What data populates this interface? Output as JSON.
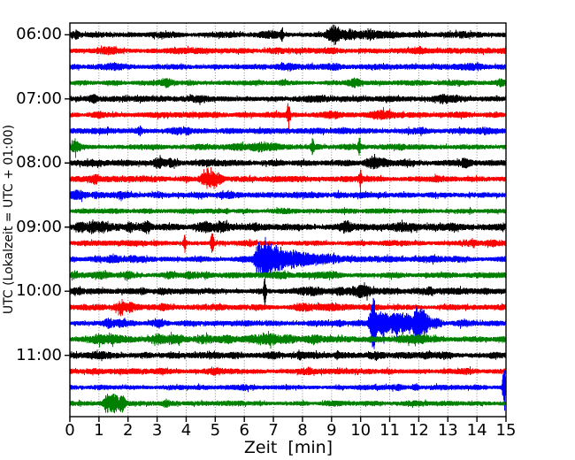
{
  "axes": {
    "xlabel": "Zeit  [min]",
    "ylabel": "UTC (Lokalzeit = UTC + 01:00)"
  },
  "chart_data": {
    "type": "line",
    "subtype": "seismogram-helicorder",
    "title": "",
    "xlabel": "Zeit  [min]",
    "ylabel": "UTC (Lokalzeit = UTC + 01:00)",
    "xlim": [
      0,
      15
    ],
    "x_tick_labels": [
      "0",
      "1",
      "2",
      "3",
      "4",
      "5",
      "6",
      "7",
      "8",
      "9",
      "10",
      "11",
      "12",
      "13",
      "14",
      "15"
    ],
    "y_tick_labels": [
      "06:00",
      "07:00",
      "08:00",
      "09:00",
      "10:00",
      "11:00"
    ],
    "rows_per_hour": 4,
    "minutes_per_row": 15,
    "grid": "vertical-dotted-per-minute",
    "grid_color": "#7a7a7a",
    "frame_color": "#000000",
    "trace_colors": {
      "black": "#000000",
      "red": "#ff0000",
      "blue": "#0000ff",
      "green": "#008000"
    },
    "event_format": "[center_minute, gaussian_width_minutes, extra_amplitude_px]",
    "rows": [
      {
        "utc": "06:00",
        "color": "#000000",
        "base": 3.2,
        "events": [
          [
            0.22,
            0.1,
            3.2
          ],
          [
            3.0,
            0.3,
            0.8
          ],
          [
            6.9,
            0.35,
            2.2
          ],
          [
            7.3,
            0.05,
            4.5
          ],
          [
            9.1,
            0.22,
            8.5
          ],
          [
            9.6,
            0.3,
            4.0
          ],
          [
            10.3,
            0.3,
            2.2
          ],
          [
            11.0,
            0.4,
            1.6
          ],
          [
            13.5,
            0.3,
            1.4
          ]
        ]
      },
      {
        "utc": "06:15",
        "color": "#ff0000",
        "base": 3.0,
        "events": [
          [
            1.3,
            0.3,
            1.4
          ],
          [
            3.6,
            0.3,
            0.8
          ],
          [
            7.1,
            0.4,
            1.0
          ],
          [
            9.0,
            0.3,
            0.9
          ],
          [
            12.1,
            0.4,
            0.8
          ]
        ]
      },
      {
        "utc": "06:30",
        "color": "#0000ff",
        "base": 3.0,
        "events": [
          [
            1.5,
            0.3,
            1.4
          ],
          [
            5.0,
            0.2,
            0.9
          ],
          [
            7.4,
            0.3,
            1.4
          ],
          [
            9.2,
            0.25,
            1.1
          ],
          [
            13.9,
            0.3,
            0.9
          ]
        ]
      },
      {
        "utc": "06:45",
        "color": "#008000",
        "base": 2.8,
        "events": [
          [
            3.3,
            0.22,
            3.0
          ],
          [
            4.1,
            0.2,
            1.3
          ],
          [
            7.3,
            0.15,
            1.4
          ],
          [
            9.8,
            0.22,
            3.4
          ],
          [
            14.8,
            0.12,
            2.2
          ]
        ]
      },
      {
        "utc": "07:00",
        "color": "#000000",
        "base": 3.2,
        "events": [
          [
            0.8,
            0.15,
            3.0
          ],
          [
            2.5,
            0.3,
            1.3
          ],
          [
            4.3,
            0.3,
            1.0
          ],
          [
            8.5,
            0.3,
            1.0
          ],
          [
            12.9,
            0.22,
            3.6
          ],
          [
            13.3,
            0.2,
            1.8
          ]
        ]
      },
      {
        "utc": "07:15",
        "color": "#ff0000",
        "base": 3.0,
        "events": [
          [
            1.0,
            0.2,
            1.1
          ],
          [
            7.52,
            0.05,
            12.0
          ],
          [
            9.0,
            0.3,
            2.8
          ],
          [
            10.6,
            0.35,
            3.0
          ],
          [
            11.0,
            0.25,
            1.8
          ],
          [
            13.5,
            0.3,
            0.9
          ]
        ]
      },
      {
        "utc": "07:30",
        "color": "#0000ff",
        "base": 3.1,
        "events": [
          [
            2.4,
            0.15,
            2.2
          ],
          [
            3.7,
            0.3,
            1.8
          ],
          [
            4.05,
            0.1,
            2.0
          ],
          [
            6.5,
            0.2,
            1.1
          ],
          [
            9.4,
            0.2,
            1.4
          ],
          [
            12.0,
            0.3,
            0.9
          ],
          [
            14.3,
            0.25,
            1.1
          ]
        ]
      },
      {
        "utc": "07:45",
        "color": "#008000",
        "base": 3.0,
        "events": [
          [
            0.2,
            0.14,
            5.0
          ],
          [
            5.8,
            0.3,
            1.8
          ],
          [
            6.5,
            0.3,
            2.8
          ],
          [
            7.0,
            0.2,
            1.8
          ],
          [
            8.35,
            0.05,
            8.0
          ],
          [
            9.95,
            0.05,
            9.0
          ],
          [
            11.4,
            0.1,
            1.4
          ]
        ]
      },
      {
        "utc": "08:00",
        "color": "#000000",
        "base": 3.3,
        "events": [
          [
            3.05,
            0.18,
            4.5
          ],
          [
            3.5,
            0.2,
            2.2
          ],
          [
            5.5,
            0.3,
            1.0
          ],
          [
            10.4,
            0.22,
            5.0
          ],
          [
            10.8,
            0.2,
            2.8
          ],
          [
            13.6,
            0.15,
            3.4
          ]
        ]
      },
      {
        "utc": "08:15",
        "color": "#ff0000",
        "base": 3.0,
        "events": [
          [
            0.85,
            0.15,
            3.4
          ],
          [
            4.75,
            0.22,
            9.0
          ],
          [
            5.1,
            0.15,
            4.5
          ],
          [
            7.0,
            0.3,
            1.0
          ],
          [
            10.0,
            0.05,
            10.0
          ],
          [
            12.6,
            0.2,
            1.3
          ]
        ]
      },
      {
        "utc": "08:30",
        "color": "#0000ff",
        "base": 3.1,
        "events": [
          [
            0.3,
            0.22,
            3.0
          ],
          [
            0.9,
            0.2,
            1.8
          ],
          [
            1.8,
            0.15,
            1.4
          ],
          [
            5.3,
            0.3,
            0.9
          ],
          [
            9.3,
            0.2,
            1.7
          ],
          [
            10.1,
            0.25,
            1.4
          ],
          [
            10.7,
            0.2,
            1.1
          ]
        ]
      },
      {
        "utc": "08:45",
        "color": "#008000",
        "base": 2.6,
        "events": [
          [
            2.7,
            0.3,
            0.9
          ],
          [
            5.4,
            0.05,
            1.8
          ],
          [
            7.3,
            0.3,
            0.9
          ],
          [
            12.1,
            0.3,
            0.9
          ],
          [
            13.8,
            0.05,
            1.4
          ]
        ]
      },
      {
        "utc": "09:00",
        "color": "#000000",
        "base": 3.5,
        "events": [
          [
            0.35,
            0.15,
            4.0
          ],
          [
            0.75,
            0.15,
            4.0
          ],
          [
            1.1,
            0.2,
            3.0
          ],
          [
            2.05,
            0.1,
            2.2
          ],
          [
            2.65,
            0.12,
            4.5
          ],
          [
            4.6,
            0.28,
            4.0
          ],
          [
            5.2,
            0.28,
            3.2
          ],
          [
            6.4,
            0.05,
            2.8
          ],
          [
            9.5,
            0.2,
            3.8
          ],
          [
            11.3,
            0.3,
            1.8
          ],
          [
            11.8,
            0.3,
            1.8
          ],
          [
            13.2,
            0.2,
            1.4
          ]
        ]
      },
      {
        "utc": "09:15",
        "color": "#ff0000",
        "base": 3.0,
        "events": [
          [
            3.95,
            0.05,
            9.0
          ],
          [
            4.9,
            0.05,
            11.0
          ],
          [
            6.2,
            0.05,
            1.8
          ],
          [
            13.8,
            0.25,
            1.8
          ],
          [
            14.5,
            0.2,
            1.1
          ]
        ]
      },
      {
        "utc": "09:30",
        "color": "#0000ff",
        "base": 3.1,
        "events": [
          [
            0.9,
            0.3,
            1.4
          ],
          [
            1.5,
            0.25,
            1.8
          ],
          [
            2.2,
            0.2,
            1.4
          ],
          [
            6.45,
            0.08,
            10.0
          ],
          [
            6.7,
            0.22,
            17.0
          ],
          [
            7.1,
            0.3,
            11.0
          ],
          [
            7.8,
            0.5,
            6.5
          ],
          [
            8.8,
            0.6,
            2.8
          ],
          [
            12.5,
            0.3,
            0.9
          ]
        ]
      },
      {
        "utc": "09:45",
        "color": "#008000",
        "base": 3.0,
        "events": [
          [
            0.15,
            0.1,
            2.5
          ],
          [
            1.2,
            0.25,
            1.8
          ],
          [
            2.0,
            0.2,
            1.4
          ],
          [
            3.4,
            0.15,
            1.8
          ],
          [
            4.2,
            0.25,
            2.2
          ],
          [
            4.7,
            0.2,
            1.8
          ],
          [
            7.3,
            0.25,
            1.8
          ],
          [
            9.0,
            0.3,
            1.4
          ],
          [
            11.2,
            0.3,
            1.1
          ]
        ]
      },
      {
        "utc": "10:00",
        "color": "#000000",
        "base": 3.4,
        "events": [
          [
            0.3,
            0.2,
            1.8
          ],
          [
            2.5,
            0.1,
            2.0
          ],
          [
            3.2,
            0.2,
            2.0
          ],
          [
            6.7,
            0.04,
            16.0
          ],
          [
            8.3,
            0.4,
            1.8
          ],
          [
            9.3,
            0.3,
            2.8
          ],
          [
            9.9,
            0.25,
            3.6
          ],
          [
            10.2,
            0.2,
            2.8
          ],
          [
            12.4,
            0.15,
            3.4
          ],
          [
            14.2,
            0.3,
            1.4
          ]
        ]
      },
      {
        "utc": "10:15",
        "color": "#ff0000",
        "base": 3.0,
        "events": [
          [
            1.75,
            0.17,
            5.0
          ],
          [
            2.1,
            0.15,
            2.8
          ],
          [
            3.2,
            0.2,
            1.8
          ],
          [
            5.1,
            0.25,
            1.8
          ],
          [
            8.0,
            0.3,
            1.8
          ],
          [
            9.0,
            0.25,
            1.4
          ],
          [
            10.4,
            0.2,
            1.4
          ],
          [
            13.0,
            0.3,
            1.1
          ]
        ]
      },
      {
        "utc": "10:30",
        "color": "#0000ff",
        "base": 3.0,
        "events": [
          [
            1.35,
            0.2,
            2.8
          ],
          [
            1.8,
            0.15,
            2.4
          ],
          [
            3.1,
            0.25,
            1.4
          ],
          [
            6.0,
            0.3,
            1.1
          ],
          [
            9.3,
            0.15,
            1.8
          ],
          [
            10.45,
            0.12,
            26.0
          ],
          [
            10.75,
            0.15,
            12.0
          ],
          [
            11.2,
            0.3,
            9.0
          ],
          [
            11.6,
            0.25,
            6.0
          ],
          [
            11.95,
            0.12,
            18.0
          ],
          [
            12.2,
            0.15,
            13.0
          ],
          [
            12.6,
            0.2,
            4.0
          ],
          [
            13.5,
            0.3,
            1.4
          ]
        ]
      },
      {
        "utc": "10:45",
        "color": "#008000",
        "base": 3.4,
        "events": [
          [
            1.0,
            0.25,
            2.8
          ],
          [
            1.5,
            0.25,
            2.2
          ],
          [
            3.0,
            0.25,
            2.8
          ],
          [
            3.6,
            0.3,
            2.2
          ],
          [
            4.6,
            0.3,
            2.8
          ],
          [
            5.4,
            0.3,
            2.2
          ],
          [
            6.3,
            0.3,
            2.8
          ],
          [
            6.9,
            0.25,
            3.8
          ],
          [
            7.5,
            0.3,
            2.8
          ],
          [
            8.3,
            0.3,
            1.8
          ],
          [
            11.5,
            0.3,
            2.2
          ],
          [
            12.0,
            0.3,
            1.8
          ],
          [
            14.0,
            0.3,
            1.1
          ]
        ]
      },
      {
        "utc": "11:00",
        "color": "#000000",
        "base": 3.4,
        "events": [
          [
            1.0,
            0.3,
            1.1
          ],
          [
            2.6,
            0.25,
            1.4
          ],
          [
            5.7,
            0.2,
            1.8
          ],
          [
            7.0,
            0.25,
            1.4
          ],
          [
            7.9,
            0.06,
            3.6
          ],
          [
            9.2,
            0.07,
            2.8
          ],
          [
            10.5,
            0.3,
            1.4
          ],
          [
            12.3,
            0.3,
            1.8
          ],
          [
            12.9,
            0.25,
            1.8
          ],
          [
            14.6,
            0.2,
            1.4
          ]
        ]
      },
      {
        "utc": "11:15",
        "color": "#ff0000",
        "base": 2.9,
        "events": [
          [
            0.9,
            0.25,
            1.4
          ],
          [
            3.2,
            0.2,
            1.1
          ],
          [
            5.0,
            0.25,
            1.4
          ],
          [
            8.1,
            0.25,
            1.7
          ],
          [
            10.3,
            0.3,
            0.9
          ],
          [
            13.7,
            0.25,
            1.4
          ]
        ]
      },
      {
        "utc": "11:30",
        "color": "#0000ff",
        "base": 2.6,
        "events": [
          [
            1.0,
            0.25,
            1.1
          ],
          [
            6.0,
            0.2,
            0.9
          ],
          [
            9.3,
            0.2,
            0.9
          ],
          [
            11.3,
            0.15,
            1.4
          ],
          [
            11.9,
            0.1,
            1.8
          ],
          [
            14.93,
            0.045,
            30.0
          ]
        ]
      },
      {
        "utc": "11:45",
        "color": "#008000",
        "base": 2.6,
        "events": [
          [
            1.25,
            0.1,
            8.0
          ],
          [
            1.5,
            0.14,
            11.0
          ],
          [
            1.8,
            0.12,
            7.0
          ],
          [
            3.3,
            0.1,
            2.2
          ],
          [
            5.9,
            0.2,
            0.9
          ],
          [
            9.0,
            0.3,
            0.7
          ],
          [
            12.0,
            0.3,
            0.7
          ]
        ]
      }
    ]
  }
}
